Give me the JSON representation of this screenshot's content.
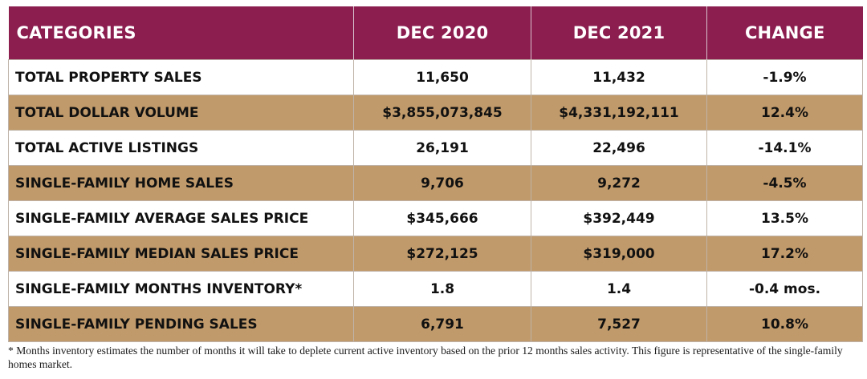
{
  "table": {
    "headers": [
      "CATEGORIES",
      "DEC 2020",
      "DEC 2021",
      "CHANGE"
    ],
    "rows": [
      {
        "category": "TOTAL PROPERTY SALES",
        "dec2020": "11,650",
        "dec2021": "11,432",
        "change": "-1.9%"
      },
      {
        "category": "TOTAL DOLLAR VOLUME",
        "dec2020": "$3,855,073,845",
        "dec2021": "$4,331,192,111",
        "change": "12.4%"
      },
      {
        "category": "TOTAL ACTIVE LISTINGS",
        "dec2020": "26,191",
        "dec2021": "22,496",
        "change": "-14.1%"
      },
      {
        "category": "SINGLE-FAMILY HOME SALES",
        "dec2020": "9,706",
        "dec2021": "9,272",
        "change": "-4.5%"
      },
      {
        "category": "SINGLE-FAMILY AVERAGE SALES PRICE",
        "dec2020": "$345,666",
        "dec2021": "$392,449",
        "change": "13.5%"
      },
      {
        "category": "SINGLE-FAMILY MEDIAN SALES PRICE",
        "dec2020": "$272,125",
        "dec2021": "$319,000",
        "change": "17.2%"
      },
      {
        "category": "SINGLE-FAMILY MONTHS INVENTORY*",
        "dec2020": "1.8",
        "dec2021": "1.4",
        "change": "-0.4 mos."
      },
      {
        "category": "SINGLE-FAMILY PENDING SALES",
        "dec2020": "6,791",
        "dec2021": "7,527",
        "change": "10.8%"
      }
    ]
  },
  "footnote": "* Months inventory estimates the number of months it will take to deplete current active inventory based on the prior 12 months sales activity. This figure is representative of the single-family homes market.",
  "colors": {
    "header_bg": "#8b1d4f",
    "header_text": "#ffffff",
    "alt_row_bg": "#c19a6b",
    "plain_row_bg": "#ffffff"
  }
}
